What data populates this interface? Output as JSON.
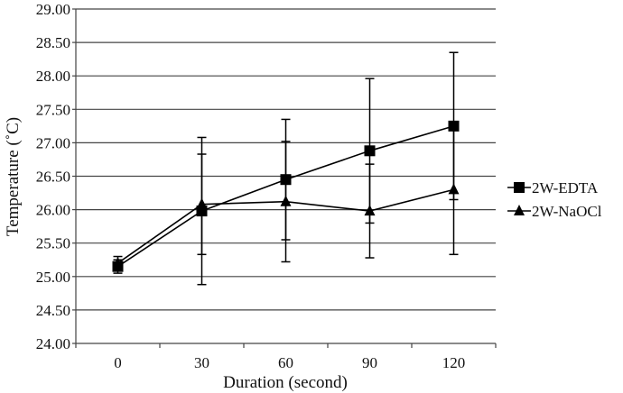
{
  "chart_data": {
    "type": "line",
    "title": "",
    "xlabel": "Duration (second)",
    "ylabel": "Temperature (˚C)",
    "categories": [
      "0",
      "30",
      "60",
      "90",
      "120"
    ],
    "ylim": [
      24.0,
      29.0
    ],
    "yticks": [
      "24.00",
      "24.50",
      "25.00",
      "25.50",
      "26.00",
      "26.50",
      "27.00",
      "27.50",
      "28.00",
      "28.50",
      "29.00"
    ],
    "grid": true,
    "legend_position": "right",
    "series": [
      {
        "name": "2W-EDTA",
        "marker": "square",
        "values": [
          25.15,
          25.98,
          26.45,
          26.88,
          27.25
        ],
        "errors": [
          0.1,
          1.1,
          0.9,
          1.08,
          1.1
        ]
      },
      {
        "name": "2W-NaOCl",
        "marker": "triangle",
        "values": [
          25.2,
          26.08,
          26.12,
          25.98,
          26.3
        ],
        "errors": [
          0.1,
          0.75,
          0.9,
          0.7,
          0.97
        ]
      }
    ]
  }
}
